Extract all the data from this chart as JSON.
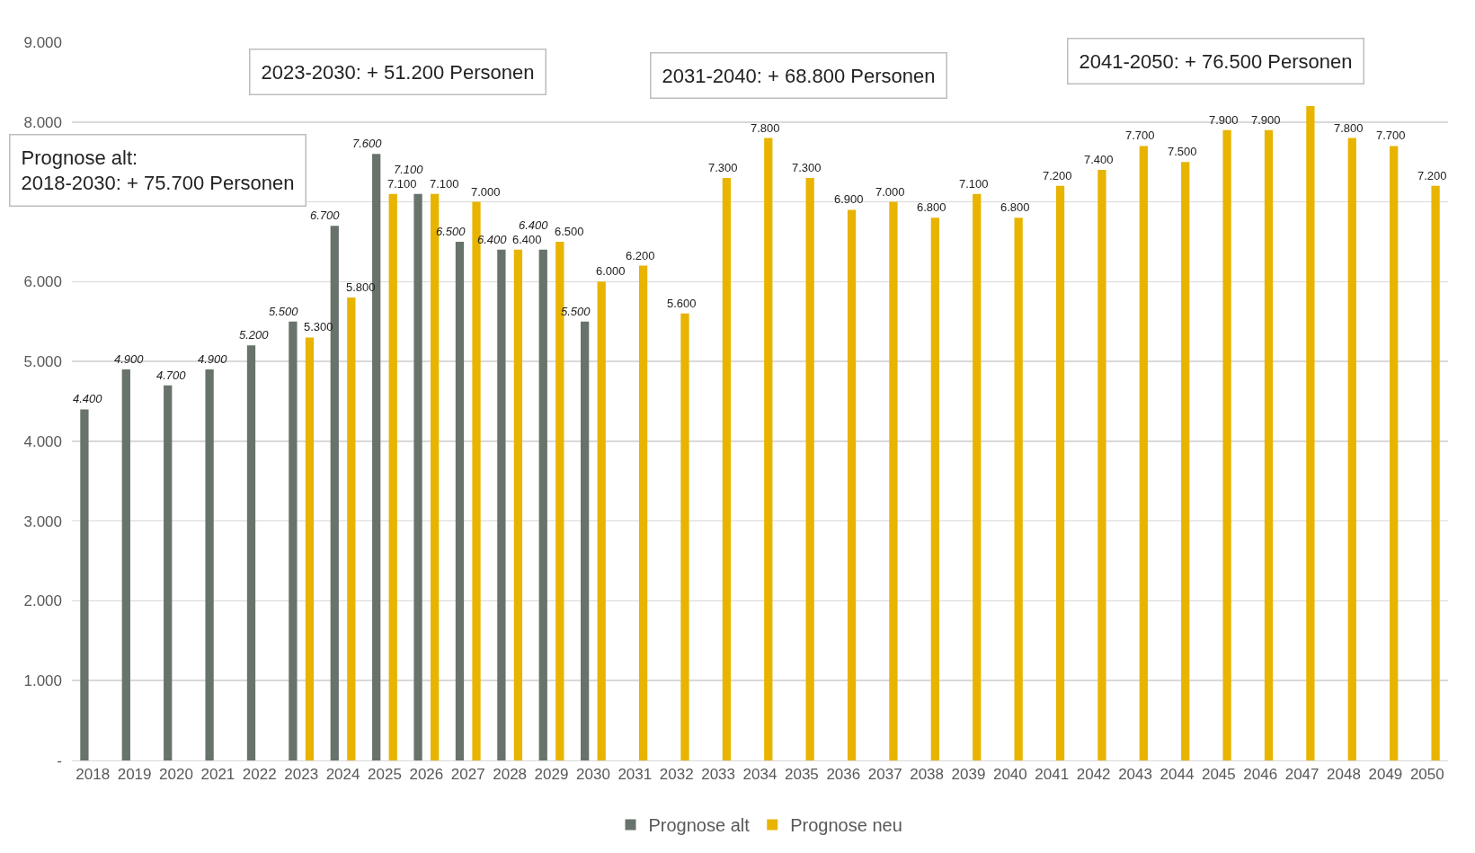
{
  "chart_data": {
    "type": "bar",
    "categories": [
      "2018",
      "2019",
      "2020",
      "2021",
      "2022",
      "2023",
      "2024",
      "2025",
      "2026",
      "2027",
      "2028",
      "2029",
      "2030",
      "2031",
      "2032",
      "2033",
      "2034",
      "2035",
      "2036",
      "2037",
      "2038",
      "2039",
      "2040",
      "2041",
      "2042",
      "2043",
      "2044",
      "2045",
      "2046",
      "2047",
      "2048",
      "2049",
      "2050"
    ],
    "series": [
      {
        "name": "Prognose alt",
        "color": "#68736b",
        "values": [
          4400,
          4900,
          4700,
          4900,
          5200,
          5500,
          6700,
          7600,
          7100,
          6500,
          6400,
          6400,
          5500,
          null,
          null,
          null,
          null,
          null,
          null,
          null,
          null,
          null,
          null,
          null,
          null,
          null,
          null,
          null,
          null,
          null,
          null,
          null,
          null
        ],
        "value_labels": [
          "4.400",
          "4.900",
          "4.700",
          "4.900",
          "5.200",
          "5.500",
          "6.700",
          "7.600",
          "7.100",
          "6.500",
          "6.400",
          "6.400",
          "5.500",
          null,
          null,
          null,
          null,
          null,
          null,
          null,
          null,
          null,
          null,
          null,
          null,
          null,
          null,
          null,
          null,
          null,
          null,
          null,
          null
        ]
      },
      {
        "name": "Prognose neu",
        "color": "#e8b400",
        "values": [
          null,
          null,
          null,
          null,
          null,
          5300,
          5800,
          7100,
          7100,
          7000,
          6400,
          6500,
          6000,
          6200,
          5600,
          7300,
          7800,
          7300,
          6900,
          7000,
          6800,
          7100,
          6800,
          7200,
          7400,
          7700,
          7500,
          7900,
          7900,
          8200,
          7800,
          7700,
          7200
        ],
        "value_labels": [
          null,
          null,
          null,
          null,
          null,
          "5.300",
          "5.800",
          "7.100",
          "7.100",
          "7.000",
          "6.400",
          "6.500",
          "6.000",
          "6.200",
          "5.600",
          "7.300",
          "7.800",
          "7.300",
          "6.900",
          "7.000",
          "6.800",
          "7.100",
          "6.800",
          "7.200",
          "7.400",
          "7.700",
          "7.500",
          "7.900",
          "7.900",
          null,
          "7.800",
          "7.700",
          "7.200"
        ]
      }
    ],
    "ylim": [
      0,
      9000
    ],
    "yticks": [
      {
        "value": 0,
        "label": "-"
      },
      {
        "value": 1000,
        "label": "1.000"
      },
      {
        "value": 2000,
        "label": "2.000"
      },
      {
        "value": 3000,
        "label": "3.000"
      },
      {
        "value": 4000,
        "label": "4.000"
      },
      {
        "value": 5000,
        "label": "5.000"
      },
      {
        "value": 6000,
        "label": "6.000"
      },
      {
        "value": 7000,
        "label": null
      },
      {
        "value": 8000,
        "label": "8.000"
      },
      {
        "value": 9000,
        "label": "9.000"
      }
    ],
    "grid": "y",
    "legend": "bottom",
    "annotations": [
      "2023-2030: + 51.200 Personen",
      "2031-2040: + 68.800 Personen",
      "2041-2050: + 76.500 Personen",
      "Prognose alt:\n2018-2030: + 75.700 Personen"
    ]
  }
}
